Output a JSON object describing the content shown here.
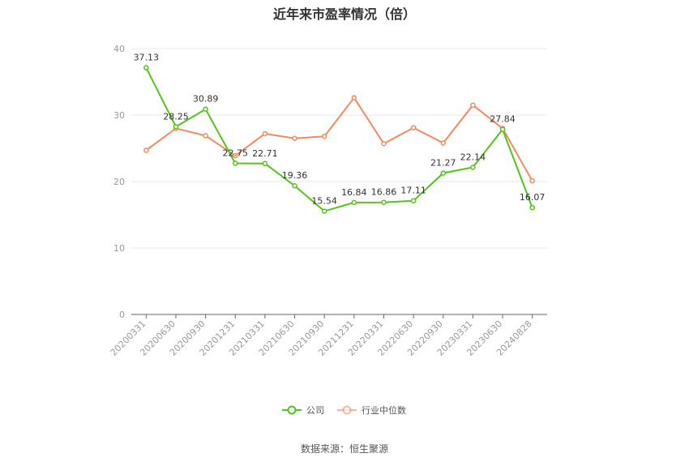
{
  "title": "近年来市盈率情况（倍）",
  "source": "数据来源：恒生聚源",
  "colors": {
    "company": "#52c41a",
    "industry": "#f4895f",
    "grid": "#e6e9f0",
    "axis": "#666666"
  },
  "chart_data": {
    "type": "line",
    "title": "近年来市盈率情况（倍）",
    "categories": [
      "20200331",
      "20200630",
      "20200930",
      "20201231",
      "20210331",
      "20210630",
      "20210930",
      "20211231",
      "20220331",
      "20220630",
      "20220930",
      "20230331",
      "20230630",
      "20240828"
    ],
    "ylim": [
      0,
      40
    ],
    "yticks": [
      0,
      10,
      20,
      30,
      40
    ],
    "grid": true,
    "legend": "bottom",
    "series": [
      {
        "name": "公司",
        "color": "#52c41a",
        "values": [
          37.13,
          28.25,
          30.89,
          22.75,
          22.71,
          19.36,
          15.54,
          16.84,
          16.86,
          17.11,
          21.27,
          22.14,
          27.84,
          16.07
        ],
        "labels": [
          "37.13",
          "28.25",
          "30.89",
          "22.75",
          "22.71",
          "19.36",
          "15.54",
          "16.84",
          "16.86",
          "17.11",
          "21.27",
          "22.14",
          "27.84",
          "16.07"
        ]
      },
      {
        "name": "行业中位数",
        "color": "#f4895f",
        "values": [
          24.7,
          28.0,
          26.9,
          23.9,
          27.2,
          26.5,
          26.8,
          32.6,
          25.7,
          28.1,
          25.8,
          31.5,
          28.0,
          20.1
        ]
      }
    ]
  }
}
